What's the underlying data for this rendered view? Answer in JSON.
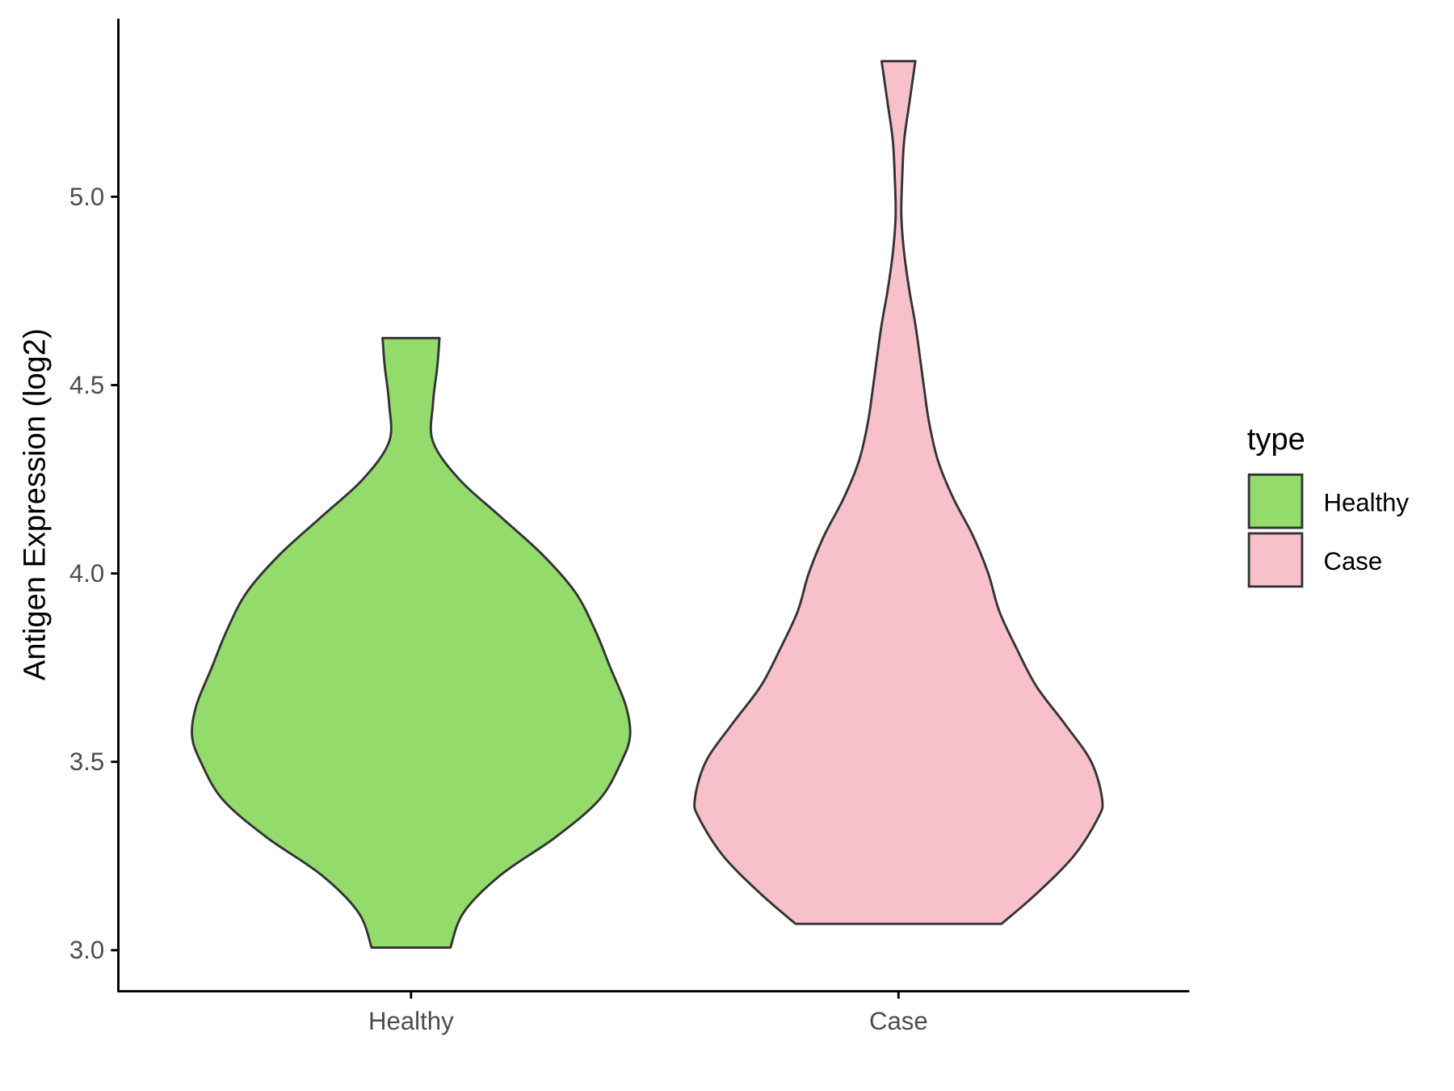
{
  "chart_data": {
    "type": "violin",
    "title": "",
    "xlabel": "",
    "ylabel": "Antigen Expression (log2)",
    "categories": [
      "Healthy",
      "Case"
    ],
    "ylim": [
      2.89,
      5.48
    ],
    "yticks": [
      3.0,
      3.5,
      4.0,
      4.5,
      5.0
    ],
    "ytick_labels": [
      "3.0",
      "3.5",
      "4.0",
      "4.5",
      "5.0"
    ],
    "grid": false,
    "legend": {
      "title": "type",
      "position": "right",
      "entries": [
        {
          "label": "Healthy",
          "color": "#93DC6B"
        },
        {
          "label": "Case",
          "color": "#F8C0CB"
        }
      ]
    },
    "series": [
      {
        "name": "Healthy",
        "color": "#93DC6B",
        "min": 3.007,
        "max": 4.625,
        "density_profile": [
          [
            3.007,
            0.18
          ],
          [
            3.1,
            0.24
          ],
          [
            3.2,
            0.41
          ],
          [
            3.3,
            0.66
          ],
          [
            3.4,
            0.86
          ],
          [
            3.5,
            0.96
          ],
          [
            3.57,
            1.0
          ],
          [
            3.65,
            0.98
          ],
          [
            3.75,
            0.91
          ],
          [
            3.85,
            0.84
          ],
          [
            3.95,
            0.75
          ],
          [
            4.05,
            0.6
          ],
          [
            4.15,
            0.41
          ],
          [
            4.25,
            0.22
          ],
          [
            4.35,
            0.1
          ],
          [
            4.45,
            0.1
          ],
          [
            4.55,
            0.12
          ],
          [
            4.625,
            0.13
          ]
        ]
      },
      {
        "name": "Case",
        "color": "#F8C0CB",
        "min": 3.07,
        "max": 5.36,
        "density_profile": [
          [
            3.07,
            0.47
          ],
          [
            3.15,
            0.63
          ],
          [
            3.25,
            0.8
          ],
          [
            3.35,
            0.91
          ],
          [
            3.4,
            0.93
          ],
          [
            3.5,
            0.88
          ],
          [
            3.6,
            0.76
          ],
          [
            3.7,
            0.63
          ],
          [
            3.8,
            0.54
          ],
          [
            3.9,
            0.46
          ],
          [
            4.0,
            0.41
          ],
          [
            4.1,
            0.34
          ],
          [
            4.2,
            0.25
          ],
          [
            4.3,
            0.18
          ],
          [
            4.4,
            0.14
          ],
          [
            4.5,
            0.115
          ],
          [
            4.65,
            0.08
          ],
          [
            4.75,
            0.05
          ],
          [
            4.85,
            0.026
          ],
          [
            4.95,
            0.013
          ],
          [
            5.05,
            0.017
          ],
          [
            5.15,
            0.026
          ],
          [
            5.25,
            0.05
          ],
          [
            5.36,
            0.077
          ]
        ]
      }
    ]
  }
}
